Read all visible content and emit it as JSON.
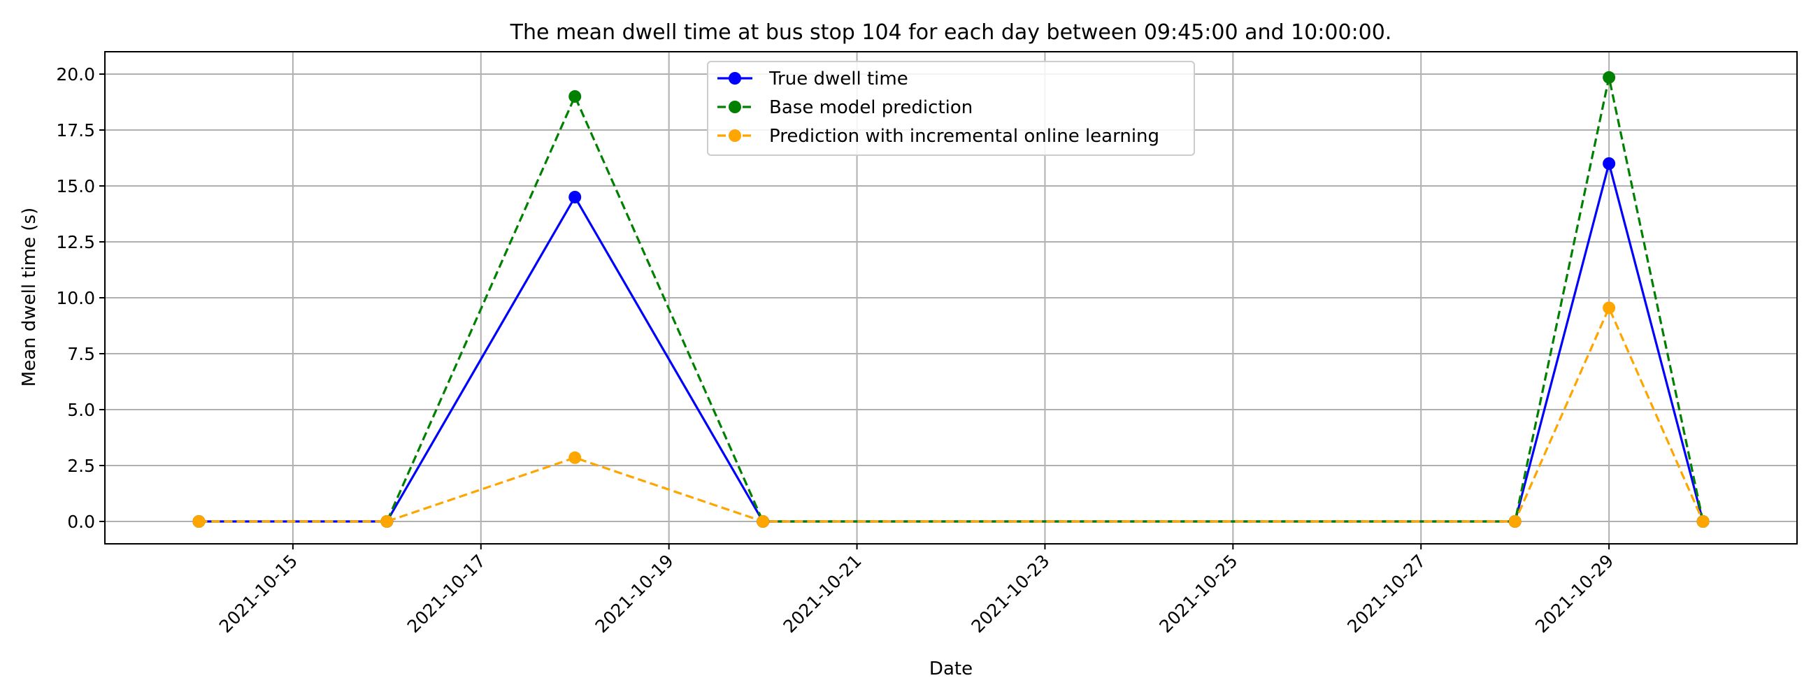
{
  "chart_data": {
    "type": "line",
    "title": "The mean dwell time at bus stop 104 for each day between 09:45:00 and 10:00:00.",
    "xlabel": "Date",
    "ylabel": "Mean dwell time (s)",
    "x": [
      "2021-10-14",
      "2021-10-16",
      "2021-10-18",
      "2021-10-20",
      "2021-10-28",
      "2021-10-29",
      "2021-10-30"
    ],
    "x_tick_labels": [
      "2021-10-15",
      "2021-10-17",
      "2021-10-19",
      "2021-10-21",
      "2021-10-23",
      "2021-10-25",
      "2021-10-27",
      "2021-10-29"
    ],
    "y_tick_labels": [
      "0.0",
      "2.5",
      "5.0",
      "7.5",
      "10.0",
      "12.5",
      "15.0",
      "17.5",
      "20.0"
    ],
    "xlim": [
      "2021-10-13",
      "2021-10-31"
    ],
    "ylim": [
      -1,
      21
    ],
    "grid": true,
    "legend_position": "top-center",
    "series": [
      {
        "name": "True dwell time",
        "color": "#0000ff",
        "linestyle": "solid",
        "marker": "circle",
        "values": [
          0,
          0,
          14.5,
          0,
          0,
          16.0,
          0
        ]
      },
      {
        "name": "Base model prediction",
        "color": "#008000",
        "linestyle": "dashed",
        "marker": "circle",
        "values": [
          0,
          0,
          19.0,
          0,
          0,
          19.85,
          0
        ]
      },
      {
        "name": "Prediction with incremental online learning",
        "color": "#ffa500",
        "linestyle": "dashed",
        "marker": "circle",
        "values": [
          0,
          0,
          2.85,
          0,
          0,
          9.55,
          0
        ]
      }
    ]
  }
}
